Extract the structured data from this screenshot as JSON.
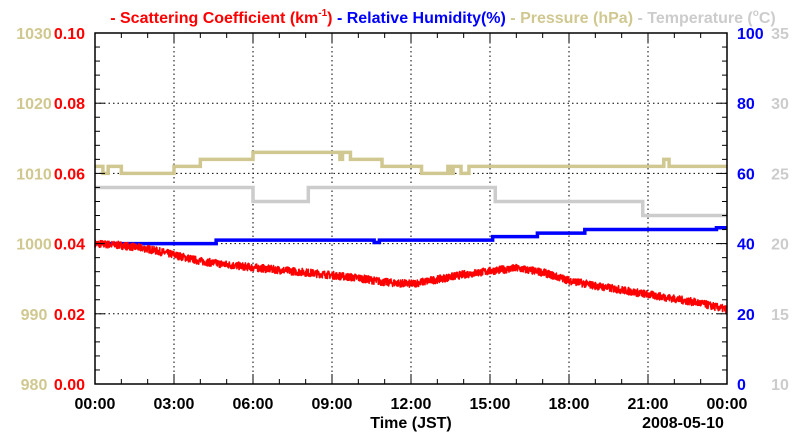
{
  "chart_data": {
    "type": "line",
    "title_parts": [
      {
        "text": "- Scattering Coefficient (km",
        "sup": "-1",
        "after": ")",
        "color": "#ff0000"
      },
      {
        "text": " - Relative Humidity(%)",
        "color": "#0000ff"
      },
      {
        "text": " - Pressure (hPa)",
        "color": "#d0c890"
      },
      {
        "text": " - Temperature (",
        "sup": "o",
        "after": "C)",
        "color": "#cccccc"
      }
    ],
    "xlabel": "Time (JST)",
    "date_label": "2008-05-10",
    "x_range_hours": [
      0,
      24
    ],
    "x_ticks": [
      "00:00",
      "03:00",
      "06:00",
      "09:00",
      "12:00",
      "15:00",
      "18:00",
      "21:00",
      "00:00"
    ],
    "grid": true,
    "axes": {
      "pressure": {
        "side": "left-outer",
        "range": [
          980,
          1030
        ],
        "ticks": [
          "980",
          "990",
          "1000",
          "1010",
          "1020",
          "1030"
        ],
        "color": "#d0c890"
      },
      "scattering": {
        "side": "left-inner",
        "range": [
          0,
          0.1
        ],
        "ticks": [
          "0.00",
          "0.02",
          "0.04",
          "0.06",
          "0.08",
          "0.10"
        ],
        "color": "#ff0000"
      },
      "humidity": {
        "side": "right-inner",
        "range": [
          0,
          100
        ],
        "ticks": [
          "0",
          "20",
          "40",
          "60",
          "80",
          "100"
        ],
        "color": "#0000ff"
      },
      "temperature": {
        "side": "right-outer",
        "range": [
          10,
          35
        ],
        "ticks": [
          "10",
          "15",
          "20",
          "25",
          "30",
          "35"
        ],
        "color": "#cccccc"
      }
    },
    "series": [
      {
        "name": "Pressure (hPa)",
        "axis": "pressure",
        "color": "#d0c890",
        "step": true,
        "points": [
          [
            0,
            1011
          ],
          [
            0.3,
            1010
          ],
          [
            0.5,
            1011
          ],
          [
            1.0,
            1010
          ],
          [
            3.0,
            1011
          ],
          [
            4.0,
            1012
          ],
          [
            6.0,
            1013
          ],
          [
            9.3,
            1012
          ],
          [
            9.4,
            1013
          ],
          [
            9.7,
            1012
          ],
          [
            10.9,
            1011
          ],
          [
            12.4,
            1010
          ],
          [
            13.4,
            1011
          ],
          [
            13.5,
            1010
          ],
          [
            13.6,
            1011
          ],
          [
            13.9,
            1010
          ],
          [
            14.2,
            1011
          ],
          [
            21.6,
            1012
          ],
          [
            21.8,
            1011
          ],
          [
            24,
            1011
          ]
        ]
      },
      {
        "name": "Temperature (C)",
        "axis": "temperature",
        "color": "#cccccc",
        "step": true,
        "points": [
          [
            0,
            24
          ],
          [
            6.0,
            23
          ],
          [
            8.1,
            24
          ],
          [
            15.2,
            23
          ],
          [
            20.8,
            22
          ],
          [
            24,
            22
          ]
        ]
      },
      {
        "name": "Relative Humidity(%)",
        "axis": "humidity",
        "color": "#0000ff",
        "step": true,
        "points": [
          [
            0,
            40
          ],
          [
            4.6,
            41
          ],
          [
            10.6,
            40.3
          ],
          [
            10.8,
            41
          ],
          [
            15.1,
            42
          ],
          [
            16.8,
            43
          ],
          [
            18.6,
            44
          ],
          [
            23.6,
            44.5
          ],
          [
            24,
            44.5
          ]
        ]
      },
      {
        "name": "Scattering Coefficient (km-1)",
        "axis": "scattering",
        "color": "#ff0000",
        "step": false,
        "noisy": true,
        "points": [
          [
            0,
            0.04
          ],
          [
            1,
            0.0395
          ],
          [
            2,
            0.0385
          ],
          [
            3,
            0.0368
          ],
          [
            4,
            0.035
          ],
          [
            5,
            0.034
          ],
          [
            6,
            0.0332
          ],
          [
            7,
            0.0325
          ],
          [
            8,
            0.0318
          ],
          [
            9,
            0.031
          ],
          [
            10,
            0.0302
          ],
          [
            11,
            0.029
          ],
          [
            12,
            0.0285
          ],
          [
            13,
            0.0298
          ],
          [
            14,
            0.0312
          ],
          [
            15,
            0.0322
          ],
          [
            16,
            0.033
          ],
          [
            17,
            0.0318
          ],
          [
            18,
            0.0295
          ],
          [
            19,
            0.028
          ],
          [
            20,
            0.0268
          ],
          [
            21,
            0.0255
          ],
          [
            22,
            0.0243
          ],
          [
            23,
            0.023
          ],
          [
            24,
            0.0212
          ]
        ]
      }
    ]
  }
}
